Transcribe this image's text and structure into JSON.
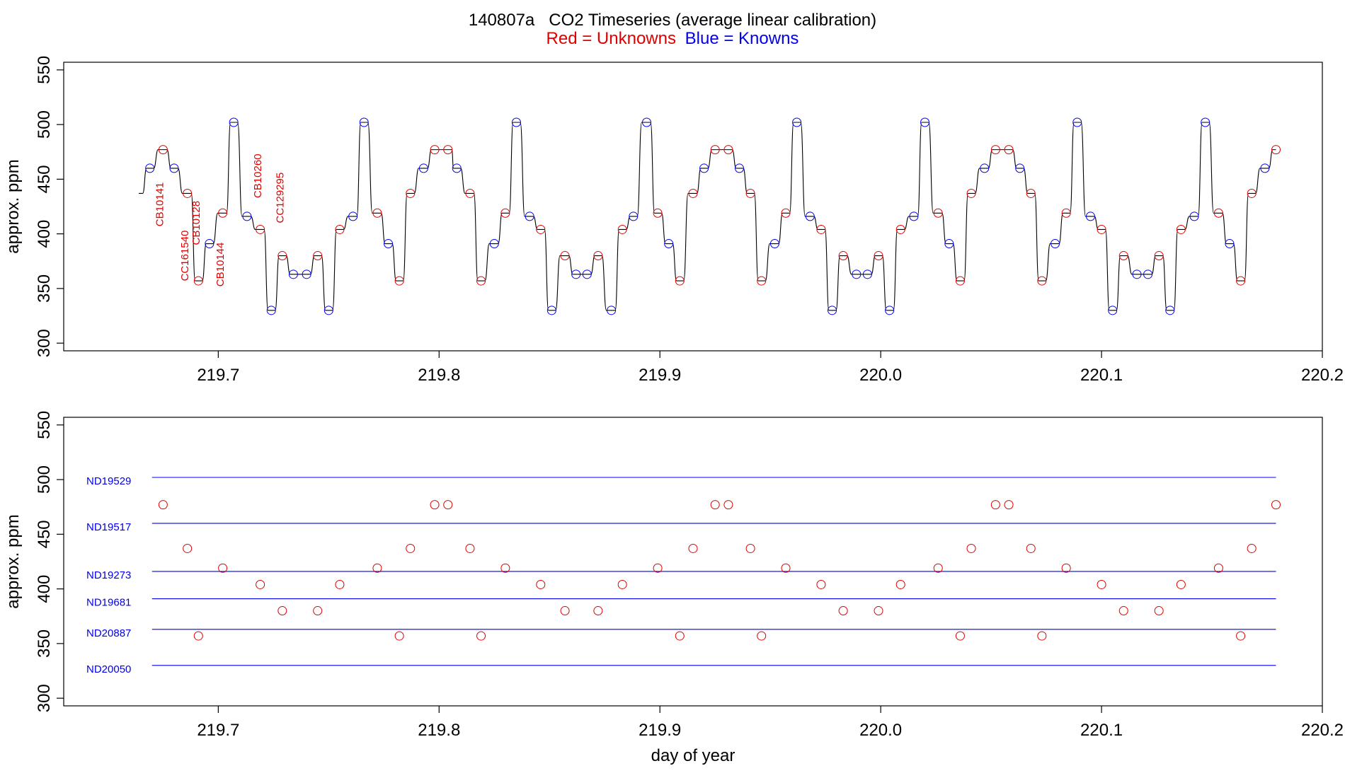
{
  "title": {
    "main": "140807a   CO2 Timeseries (average linear calibration)",
    "sub_red": "Red = Unknowns",
    "sub_blue": "Blue = Knowns"
  },
  "colors": {
    "unknown": "#e00000",
    "known": "#0000ee",
    "trace": "#000000",
    "axis": "#000000"
  },
  "chart_data": [
    {
      "type": "line",
      "name": "timeseries",
      "xlabel": "",
      "ylabel": "approx. ppm",
      "xlim": [
        219.63,
        220.2
      ],
      "ylim": [
        293,
        557
      ],
      "xticks": [
        219.7,
        219.8,
        219.9,
        220.0,
        220.1,
        220.2
      ],
      "xtick_labels": [
        "219.7",
        "219.8",
        "219.9",
        "220.0",
        "220.1",
        "220.2"
      ],
      "yticks": [
        300,
        350,
        400,
        450,
        500,
        550
      ],
      "ytick_labels": [
        "300",
        "350",
        "400",
        "450",
        "500",
        "550"
      ],
      "grid": false,
      "trace_start": {
        "x": 219.664,
        "y": 437
      },
      "labels": [
        {
          "text": "CB10141",
          "x": 219.675,
          "y": 427
        },
        {
          "text": "CC161540",
          "x": 219.6865,
          "y": 380
        },
        {
          "text": "CB10128",
          "x": 219.6915,
          "y": 410
        },
        {
          "text": "CB10144",
          "x": 219.7025,
          "y": 372
        },
        {
          "text": "CB10260",
          "x": 219.7195,
          "y": 453
        },
        {
          "text": "CC129295",
          "x": 219.7295,
          "y": 433
        }
      ],
      "series": [
        {
          "name": "Unknowns",
          "color": "#e00000",
          "points": [
            [
              219.675,
              477
            ],
            [
              219.686,
              437
            ],
            [
              219.691,
              357
            ],
            [
              219.702,
              419
            ],
            [
              219.719,
              404
            ],
            [
              219.729,
              380
            ],
            [
              219.745,
              380
            ],
            [
              219.755,
              404
            ],
            [
              219.772,
              419
            ],
            [
              219.782,
              357
            ],
            [
              219.787,
              437
            ],
            [
              219.798,
              477
            ],
            [
              219.804,
              477
            ],
            [
              219.814,
              437
            ],
            [
              219.819,
              357
            ],
            [
              219.83,
              419
            ],
            [
              219.846,
              404
            ],
            [
              219.857,
              380
            ],
            [
              219.872,
              380
            ],
            [
              219.883,
              404
            ],
            [
              219.899,
              419
            ],
            [
              219.909,
              357
            ],
            [
              219.915,
              437
            ],
            [
              219.925,
              477
            ],
            [
              219.931,
              477
            ],
            [
              219.941,
              437
            ],
            [
              219.946,
              357
            ],
            [
              219.957,
              419
            ],
            [
              219.973,
              404
            ],
            [
              219.983,
              380
            ],
            [
              219.999,
              380
            ],
            [
              220.009,
              404
            ],
            [
              220.026,
              419
            ],
            [
              220.036,
              357
            ],
            [
              220.041,
              437
            ],
            [
              220.052,
              477
            ],
            [
              220.058,
              477
            ],
            [
              220.068,
              437
            ],
            [
              220.073,
              357
            ],
            [
              220.084,
              419
            ],
            [
              220.1,
              404
            ],
            [
              220.11,
              380
            ],
            [
              220.126,
              380
            ],
            [
              220.136,
              404
            ],
            [
              220.153,
              419
            ],
            [
              220.163,
              357
            ],
            [
              220.168,
              437
            ],
            [
              220.179,
              477
            ]
          ]
        },
        {
          "name": "Knowns",
          "color": "#0000ee",
          "points": [
            [
              219.669,
              460
            ],
            [
              219.68,
              460
            ],
            [
              219.696,
              391
            ],
            [
              219.707,
              502
            ],
            [
              219.713,
              416
            ],
            [
              219.724,
              330
            ],
            [
              219.734,
              363
            ],
            [
              219.74,
              363
            ],
            [
              219.75,
              330
            ],
            [
              219.761,
              416
            ],
            [
              219.766,
              502
            ],
            [
              219.777,
              391
            ],
            [
              219.793,
              460
            ],
            [
              219.808,
              460
            ],
            [
              219.825,
              391
            ],
            [
              219.835,
              502
            ],
            [
              219.841,
              416
            ],
            [
              219.851,
              330
            ],
            [
              219.862,
              363
            ],
            [
              219.867,
              363
            ],
            [
              219.878,
              330
            ],
            [
              219.888,
              416
            ],
            [
              219.894,
              502
            ],
            [
              219.904,
              391
            ],
            [
              219.92,
              460
            ],
            [
              219.936,
              460
            ],
            [
              219.952,
              391
            ],
            [
              219.962,
              502
            ],
            [
              219.968,
              416
            ],
            [
              219.978,
              330
            ],
            [
              219.989,
              363
            ],
            [
              219.994,
              363
            ],
            [
              220.004,
              330
            ],
            [
              220.015,
              416
            ],
            [
              220.02,
              502
            ],
            [
              220.031,
              391
            ],
            [
              220.047,
              460
            ],
            [
              220.063,
              460
            ],
            [
              220.079,
              391
            ],
            [
              220.089,
              502
            ],
            [
              220.095,
              416
            ],
            [
              220.105,
              330
            ],
            [
              220.116,
              363
            ],
            [
              220.121,
              363
            ],
            [
              220.131,
              330
            ],
            [
              220.142,
              416
            ],
            [
              220.147,
              502
            ],
            [
              220.158,
              391
            ],
            [
              220.174,
              460
            ]
          ]
        }
      ]
    },
    {
      "type": "scatter",
      "name": "standards",
      "xlabel": "day of year",
      "ylabel": "approx. ppm",
      "xlim": [
        219.63,
        220.2
      ],
      "ylim": [
        293,
        557
      ],
      "xticks": [
        219.7,
        219.8,
        219.9,
        220.0,
        220.1,
        220.2
      ],
      "xtick_labels": [
        "219.7",
        "219.8",
        "219.9",
        "220.0",
        "220.1",
        "220.2"
      ],
      "yticks": [
        300,
        350,
        400,
        450,
        500,
        550
      ],
      "ytick_labels": [
        "300",
        "350",
        "400",
        "450",
        "500",
        "550"
      ],
      "grid": false,
      "standards": [
        {
          "name": "ND19529",
          "value": 502
        },
        {
          "name": "ND19517",
          "value": 460
        },
        {
          "name": "ND19273",
          "value": 416
        },
        {
          "name": "ND19681",
          "value": 391
        },
        {
          "name": "ND20887",
          "value": 363
        },
        {
          "name": "ND20050",
          "value": 330
        }
      ],
      "standards_x_range": [
        219.67,
        220.179
      ],
      "series": [
        {
          "name": "Unknowns",
          "color": "#e00000",
          "points": [
            [
              219.675,
              477
            ],
            [
              219.686,
              437
            ],
            [
              219.691,
              357
            ],
            [
              219.702,
              419
            ],
            [
              219.719,
              404
            ],
            [
              219.729,
              380
            ],
            [
              219.745,
              380
            ],
            [
              219.755,
              404
            ],
            [
              219.772,
              419
            ],
            [
              219.782,
              357
            ],
            [
              219.787,
              437
            ],
            [
              219.798,
              477
            ],
            [
              219.804,
              477
            ],
            [
              219.814,
              437
            ],
            [
              219.819,
              357
            ],
            [
              219.83,
              419
            ],
            [
              219.846,
              404
            ],
            [
              219.857,
              380
            ],
            [
              219.872,
              380
            ],
            [
              219.883,
              404
            ],
            [
              219.899,
              419
            ],
            [
              219.909,
              357
            ],
            [
              219.915,
              437
            ],
            [
              219.925,
              477
            ],
            [
              219.931,
              477
            ],
            [
              219.941,
              437
            ],
            [
              219.946,
              357
            ],
            [
              219.957,
              419
            ],
            [
              219.973,
              404
            ],
            [
              219.983,
              380
            ],
            [
              219.999,
              380
            ],
            [
              220.009,
              404
            ],
            [
              220.026,
              419
            ],
            [
              220.036,
              357
            ],
            [
              220.041,
              437
            ],
            [
              220.052,
              477
            ],
            [
              220.058,
              477
            ],
            [
              220.068,
              437
            ],
            [
              220.073,
              357
            ],
            [
              220.084,
              419
            ],
            [
              220.1,
              404
            ],
            [
              220.11,
              380
            ],
            [
              220.126,
              380
            ],
            [
              220.136,
              404
            ],
            [
              220.153,
              419
            ],
            [
              220.163,
              357
            ],
            [
              220.168,
              437
            ],
            [
              220.179,
              477
            ]
          ]
        }
      ]
    }
  ]
}
